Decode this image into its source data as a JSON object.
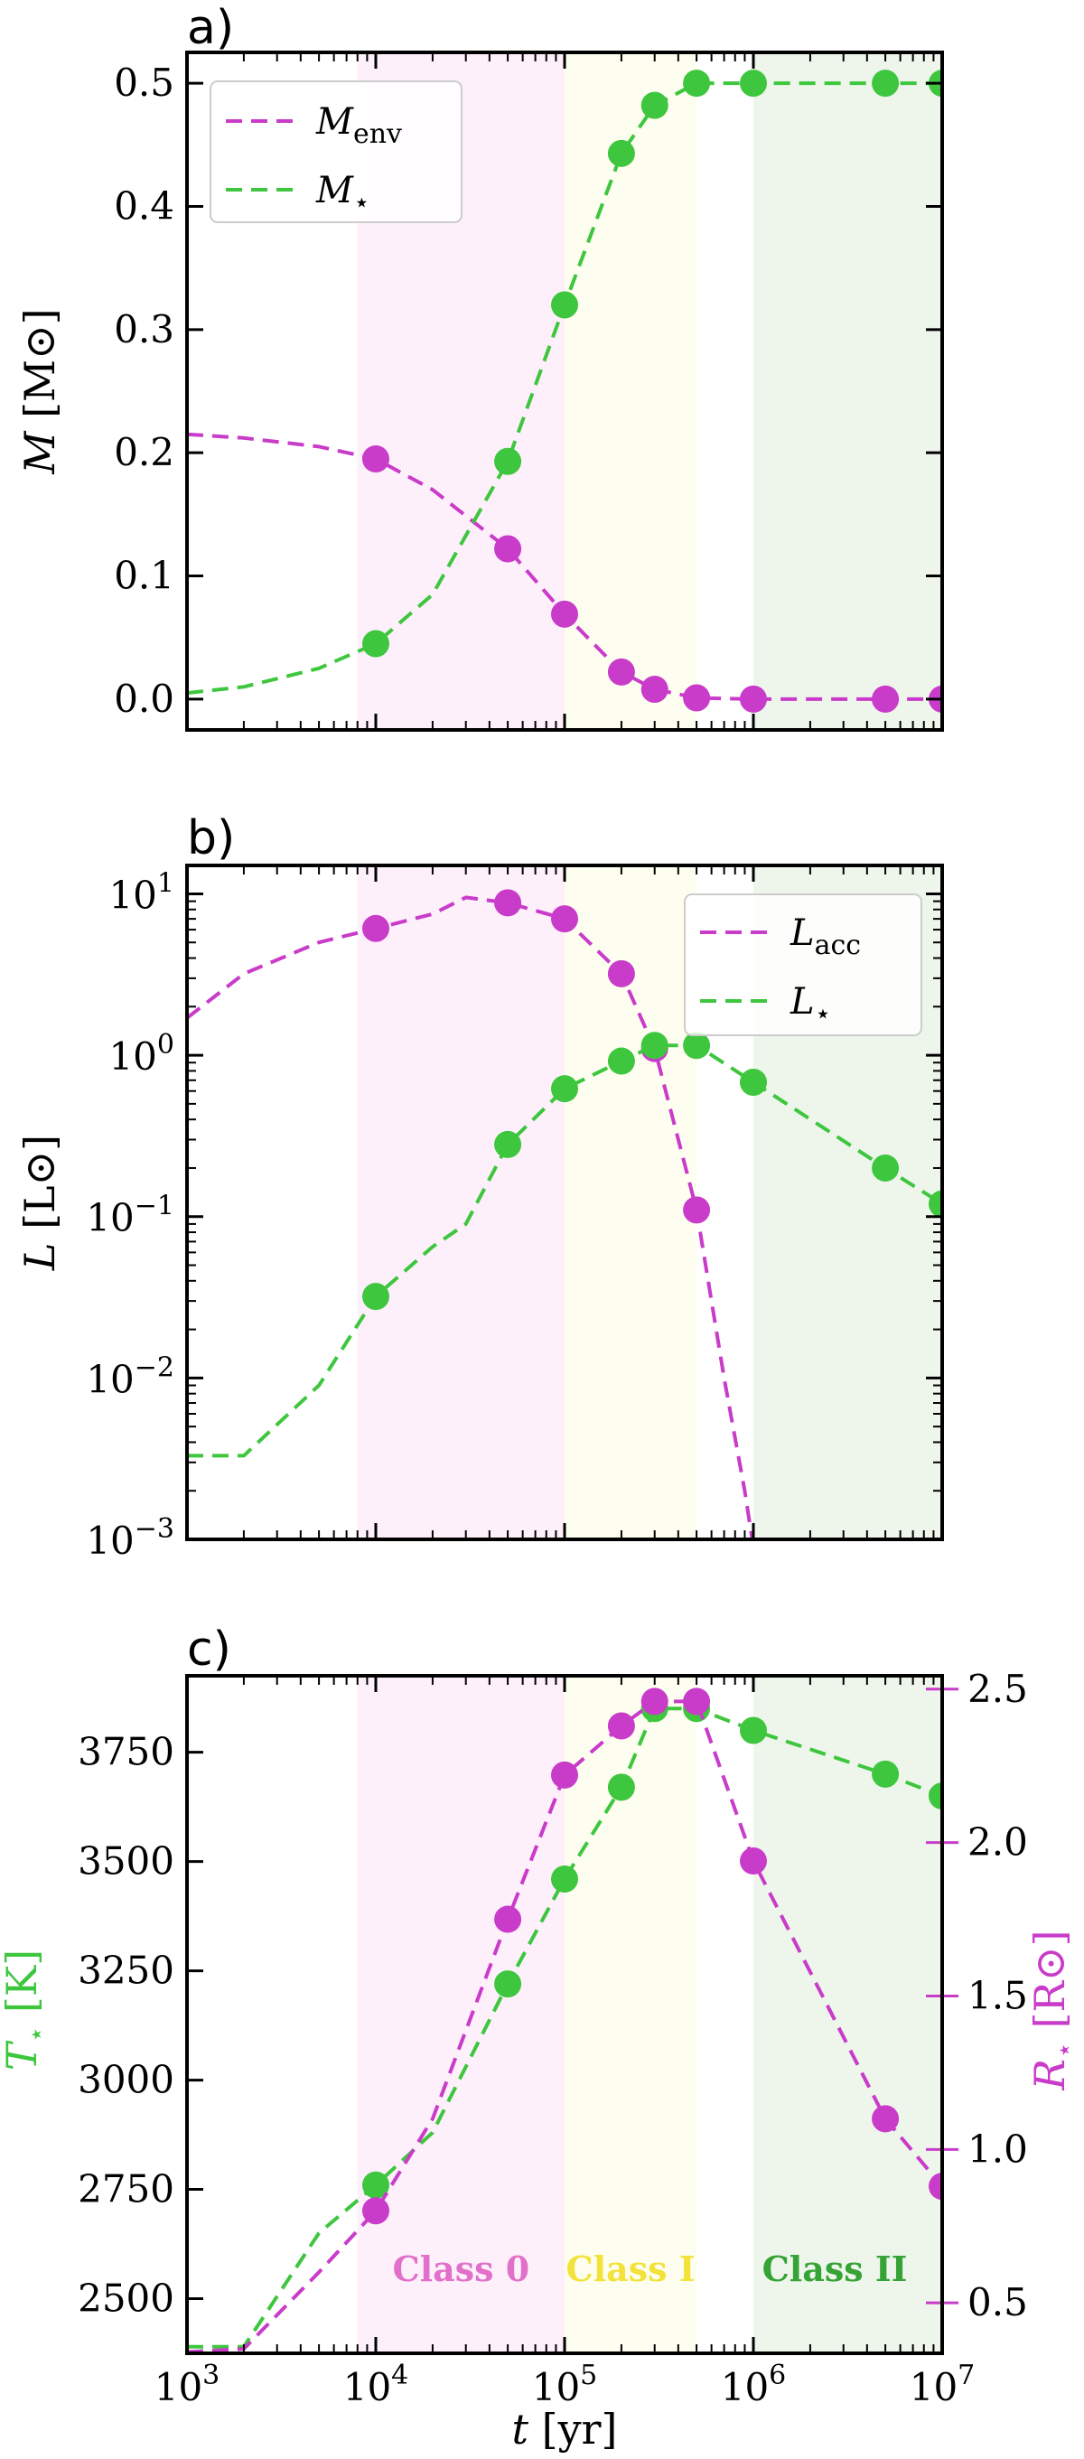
{
  "colors": {
    "magenta": "#c93bc9",
    "green": "#3ec63e",
    "class0_bg": "#fdf0fb",
    "class1_bg": "#fefef0",
    "class2_bg": "#eef6ec",
    "class0_text": "#e26fc9",
    "class1_text": "#f2e23a",
    "class2_text": "#35a335"
  },
  "chart_data": [
    {
      "panel": "a)",
      "type": "line",
      "xscale": "log",
      "xlim": [
        1000,
        10000000
      ],
      "ylim": [
        -0.025,
        0.525
      ],
      "yticks": [
        0.0,
        0.1,
        0.2,
        0.3,
        0.4,
        0.5
      ],
      "ytick_labels": [
        "0.0",
        "0.1",
        "0.2",
        "0.3",
        "0.4",
        "0.5"
      ],
      "ylabel": "M [M⊙]",
      "legend_position": "upper-left",
      "shaded_regions": [
        {
          "name": "Class 0",
          "x": [
            8000,
            100000
          ]
        },
        {
          "name": "Class I",
          "x": [
            100000,
            500000
          ]
        },
        {
          "name": "Class II",
          "x": [
            1000000,
            10000000
          ]
        }
      ],
      "series": [
        {
          "name": "M_env",
          "legend_label": "M",
          "legend_sub": "env",
          "color": "magenta",
          "curve_x": [
            1000,
            2000,
            5000,
            10000,
            20000,
            50000,
            100000,
            200000,
            300000,
            500000,
            1000000,
            5000000,
            10000000
          ],
          "curve_y": [
            0.215,
            0.212,
            0.205,
            0.195,
            0.17,
            0.122,
            0.069,
            0.022,
            0.008,
            0.001,
            0.0,
            0.0,
            0.0
          ],
          "marker_x": [
            10000,
            50000,
            100000,
            200000,
            300000,
            500000,
            1000000,
            5000000,
            10000000
          ],
          "marker_y": [
            0.195,
            0.122,
            0.069,
            0.022,
            0.008,
            0.001,
            0.0,
            0.0,
            0.0
          ]
        },
        {
          "name": "M_star",
          "legend_label": "M",
          "legend_sub": "⋆",
          "color": "green",
          "curve_x": [
            1000,
            2000,
            5000,
            10000,
            20000,
            50000,
            100000,
            200000,
            300000,
            500000,
            1000000,
            5000000,
            10000000
          ],
          "curve_y": [
            0.005,
            0.01,
            0.025,
            0.045,
            0.085,
            0.193,
            0.32,
            0.443,
            0.482,
            0.5,
            0.5,
            0.5,
            0.5
          ],
          "marker_x": [
            10000,
            50000,
            100000,
            200000,
            300000,
            500000,
            1000000,
            5000000,
            10000000
          ],
          "marker_y": [
            0.045,
            0.193,
            0.32,
            0.443,
            0.482,
            0.5,
            0.5,
            0.5,
            0.5
          ]
        }
      ]
    },
    {
      "panel": "b)",
      "type": "line",
      "xscale": "log",
      "yscale": "log",
      "xlim": [
        1000,
        10000000
      ],
      "ylim": [
        0.001,
        15
      ],
      "yticks": [
        0.001,
        0.01,
        0.1,
        1,
        10
      ],
      "ytick_labels": [
        [
          "10",
          "−3"
        ],
        [
          "10",
          "−2"
        ],
        [
          "10",
          "−1"
        ],
        [
          "10",
          "0"
        ],
        [
          "10",
          "1"
        ]
      ],
      "ylabel": "L [L⊙]",
      "legend_position": "upper-right",
      "series": [
        {
          "name": "L_acc",
          "legend_label": "L",
          "legend_sub": "acc",
          "color": "magenta",
          "curve_x": [
            1000,
            2000,
            5000,
            10000,
            20000,
            30000,
            50000,
            100000,
            200000,
            300000,
            500000,
            700000,
            900000,
            1000000
          ],
          "curve_y": [
            1.7,
            3.2,
            5.0,
            6.1,
            7.5,
            9.5,
            8.8,
            7.0,
            3.2,
            1.1,
            0.11,
            0.01,
            0.002,
            0.0009
          ],
          "marker_x": [
            10000,
            50000,
            100000,
            200000,
            300000,
            500000
          ],
          "marker_y": [
            6.1,
            8.8,
            7.0,
            3.2,
            1.1,
            0.11
          ]
        },
        {
          "name": "L_star",
          "legend_label": "L",
          "legend_sub": "⋆",
          "color": "green",
          "curve_x": [
            1000,
            2000,
            5000,
            10000,
            20000,
            30000,
            50000,
            100000,
            200000,
            300000,
            500000,
            1000000,
            5000000,
            10000000
          ],
          "curve_y": [
            0.0033,
            0.0033,
            0.009,
            0.032,
            0.065,
            0.09,
            0.28,
            0.62,
            0.92,
            1.15,
            1.15,
            0.68,
            0.2,
            0.12
          ],
          "marker_x": [
            10000,
            50000,
            100000,
            200000,
            300000,
            500000,
            1000000,
            5000000,
            10000000
          ],
          "marker_y": [
            0.032,
            0.28,
            0.62,
            0.92,
            1.15,
            1.15,
            0.68,
            0.2,
            0.12
          ]
        }
      ]
    },
    {
      "panel": "c)",
      "type": "line",
      "xscale": "log",
      "xlim": [
        1000,
        10000000
      ],
      "xticks": [
        1000,
        10000,
        100000,
        1000000,
        10000000
      ],
      "xtick_labels": [
        [
          "10",
          "3"
        ],
        [
          "10",
          "4"
        ],
        [
          "10",
          "5"
        ],
        [
          "10",
          "6"
        ],
        [
          "10",
          "7"
        ]
      ],
      "xlabel": "t [yr]",
      "ylim_left": [
        2375,
        3925
      ],
      "yticks_left": [
        2500,
        2750,
        3000,
        3250,
        3500,
        3750
      ],
      "ytick_labels_left": [
        "2500",
        "2750",
        "3000",
        "3250",
        "3500",
        "3750"
      ],
      "ylabel_left": "T⋆ [K]",
      "ylim_right": [
        0.3357,
        2.5435
      ],
      "yticks_right": [
        0.5,
        1.0,
        1.5,
        2.0,
        2.5
      ],
      "ytick_labels_right": [
        "0.5",
        "1.0",
        "1.5",
        "2.0",
        "2.5"
      ],
      "ylabel_right": "R⋆ [R⊙]",
      "class_labels": [
        "Class 0",
        "Class I",
        "Class II"
      ],
      "series": [
        {
          "name": "T_star",
          "axis": "left",
          "color": "green",
          "curve_x": [
            1000,
            2000,
            5000,
            10000,
            20000,
            50000,
            100000,
            200000,
            300000,
            500000,
            1000000,
            5000000,
            10000000
          ],
          "curve_y": [
            2390,
            2390,
            2650,
            2760,
            2880,
            3220,
            3460,
            3670,
            3850,
            3850,
            3800,
            3700,
            3650
          ],
          "marker_x": [
            10000,
            50000,
            100000,
            200000,
            300000,
            500000,
            1000000,
            5000000,
            10000000
          ],
          "marker_y": [
            2760,
            3220,
            3460,
            3670,
            3850,
            3850,
            3800,
            3700,
            3650
          ]
        },
        {
          "name": "R_star",
          "axis": "right",
          "color": "magenta",
          "curve_x": [
            1000,
            2000,
            5000,
            10000,
            20000,
            50000,
            100000,
            200000,
            300000,
            500000,
            1000000,
            5000000,
            10000000
          ],
          "curve_y": [
            0.34,
            0.35,
            0.6,
            0.8,
            1.1,
            1.75,
            2.22,
            2.38,
            2.46,
            2.46,
            1.94,
            1.1,
            0.88
          ],
          "marker_x": [
            10000,
            50000,
            100000,
            200000,
            300000,
            500000,
            1000000,
            5000000,
            10000000
          ],
          "marker_y": [
            0.8,
            1.75,
            2.22,
            2.38,
            2.46,
            2.46,
            1.94,
            1.1,
            0.88
          ]
        }
      ]
    }
  ]
}
